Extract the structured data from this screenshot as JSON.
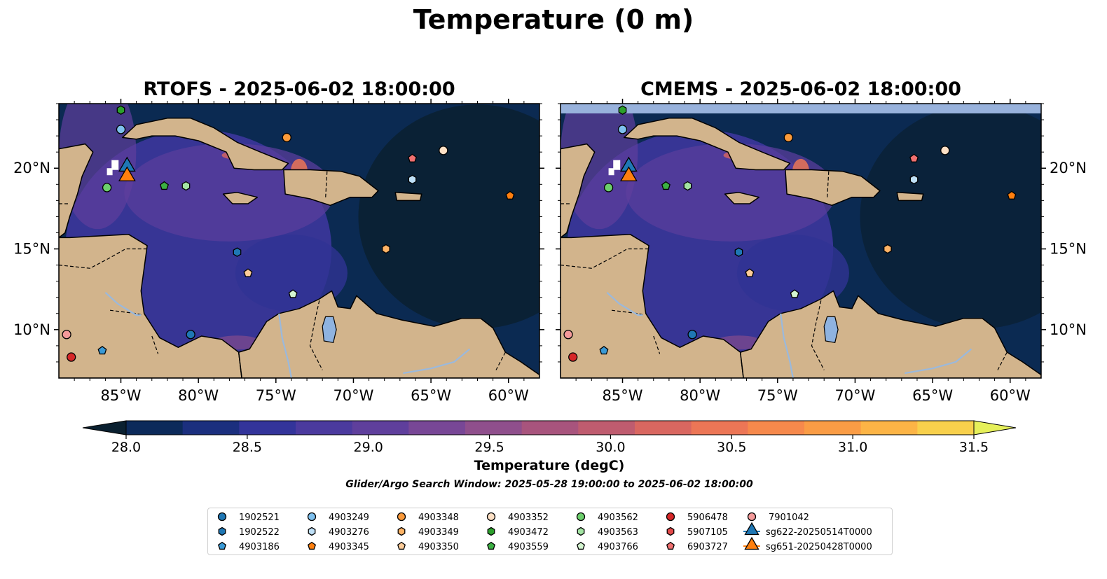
{
  "figure": {
    "suptitle": "Temperature (0 m)",
    "colorbar_label": "Temperature (degC)",
    "search_window": "Glider/Argo Search Window: 2025-05-28 19:00:00 to 2025-06-02 18:00:00"
  },
  "panels": [
    {
      "title": "RTOFS - 2025-06-02 18:00:00",
      "ylabel_side": "left"
    },
    {
      "title": "CMEMS - 2025-06-02 18:00:00",
      "ylabel_side": "right"
    }
  ],
  "map": {
    "lon_range": [
      -89,
      -58
    ],
    "lat_range": [
      7,
      24
    ],
    "lon_ticks": [
      "85°W",
      "80°W",
      "75°W",
      "70°W",
      "65°W",
      "60°W"
    ],
    "lat_ticks": [
      "20°N",
      "15°N",
      "10°N"
    ],
    "land_color": "#d2b48c",
    "lake_color": "#8fb3e0"
  },
  "colorbar": {
    "min": 28.0,
    "max": 31.5,
    "tick_labels": [
      "28.0",
      "28.5",
      "29.0",
      "29.5",
      "30.0",
      "30.5",
      "31.0",
      "31.5"
    ],
    "colors": [
      "#0a2030",
      "#0c2a5a",
      "#1b2f7e",
      "#33349a",
      "#4b3a9e",
      "#5f3f9c",
      "#784796",
      "#8f4f8c",
      "#a8547d",
      "#bf5c6f",
      "#d96760",
      "#ec7656",
      "#f6894c",
      "#fa9c45",
      "#fcb446",
      "#f8d04c",
      "#e6f05a"
    ]
  },
  "legend": {
    "columns": [
      [
        {
          "label": "1902521",
          "color": "#1f77b4",
          "marker": "circle"
        },
        {
          "label": "1902522",
          "color": "#1f77b4",
          "marker": "hexagon"
        },
        {
          "label": "4903186",
          "color": "#3a9ad6",
          "marker": "pentagon"
        }
      ],
      [
        {
          "label": "4903249",
          "color": "#7ec0ee",
          "marker": "circle"
        },
        {
          "label": "4903276",
          "color": "#bfe0f7",
          "marker": "hexagon"
        },
        {
          "label": "4903345",
          "color": "#ff7f0e",
          "marker": "pentagon"
        }
      ],
      [
        {
          "label": "4903348",
          "color": "#fb9a3a",
          "marker": "circle"
        },
        {
          "label": "4903349",
          "color": "#fdb366",
          "marker": "hexagon"
        },
        {
          "label": "4903350",
          "color": "#fdcc99",
          "marker": "pentagon"
        }
      ],
      [
        {
          "label": "4903352",
          "color": "#fde0c5",
          "marker": "circle"
        },
        {
          "label": "4903472",
          "color": "#2ca02c",
          "marker": "hexagon"
        },
        {
          "label": "4903559",
          "color": "#3cb043",
          "marker": "pentagon"
        }
      ],
      [
        {
          "label": "4903562",
          "color": "#6ccf6c",
          "marker": "circle"
        },
        {
          "label": "4903563",
          "color": "#a3e4a3",
          "marker": "hexagon"
        },
        {
          "label": "4903766",
          "color": "#d4f5d0",
          "marker": "pentagon"
        }
      ],
      [
        {
          "label": "5906478",
          "color": "#d62728",
          "marker": "circle"
        },
        {
          "label": "5907105",
          "color": "#e34a4a",
          "marker": "hexagon"
        },
        {
          "label": "6903727",
          "color": "#f07070",
          "marker": "pentagon"
        }
      ],
      [
        {
          "label": "7901042",
          "color": "#f49a9a",
          "marker": "circle"
        },
        {
          "label": "sg622-20250514T0000",
          "color": "#1f77b4",
          "marker": "triangle"
        },
        {
          "label": "sg651-20250428T0000",
          "color": "#ff7f0e",
          "marker": "triangle"
        }
      ]
    ]
  },
  "floats": [
    {
      "id": "4903472",
      "lon": -85.0,
      "lat": 23.6
    },
    {
      "id": "4903249",
      "lon": -85.0,
      "lat": 22.4
    },
    {
      "id": "4903348",
      "lon": -74.3,
      "lat": 21.9
    },
    {
      "id": "4903352",
      "lon": -64.2,
      "lat": 21.1
    },
    {
      "id": "6903727",
      "lon": -66.2,
      "lat": 20.6
    },
    {
      "id": "4903276",
      "lon": -66.2,
      "lat": 19.3
    },
    {
      "id": "4903559",
      "lon": -82.2,
      "lat": 18.9
    },
    {
      "id": "4903563",
      "lon": -80.8,
      "lat": 18.9
    },
    {
      "id": "4903562",
      "lon": -85.9,
      "lat": 18.8
    },
    {
      "id": "4903345",
      "lon": -59.9,
      "lat": 18.3
    },
    {
      "id": "4903349",
      "lon": -67.9,
      "lat": 15.0
    },
    {
      "id": "1902522",
      "lon": -77.5,
      "lat": 14.8
    },
    {
      "id": "4903350",
      "lon": -76.8,
      "lat": 13.5
    },
    {
      "id": "4903766",
      "lon": -73.9,
      "lat": 12.2
    },
    {
      "id": "1902521",
      "lon": -80.5,
      "lat": 9.7
    },
    {
      "id": "7901042",
      "lon": -88.5,
      "lat": 9.7
    },
    {
      "id": "4903186",
      "lon": -86.2,
      "lat": 8.7
    },
    {
      "id": "5906478",
      "lon": -88.2,
      "lat": 8.3
    }
  ],
  "gliders": [
    {
      "id": "sg622-20250514T0000",
      "lon": -84.6,
      "lat": 20.1
    },
    {
      "id": "sg651-20250428T0000",
      "lon": -84.6,
      "lat": 19.5
    }
  ]
}
